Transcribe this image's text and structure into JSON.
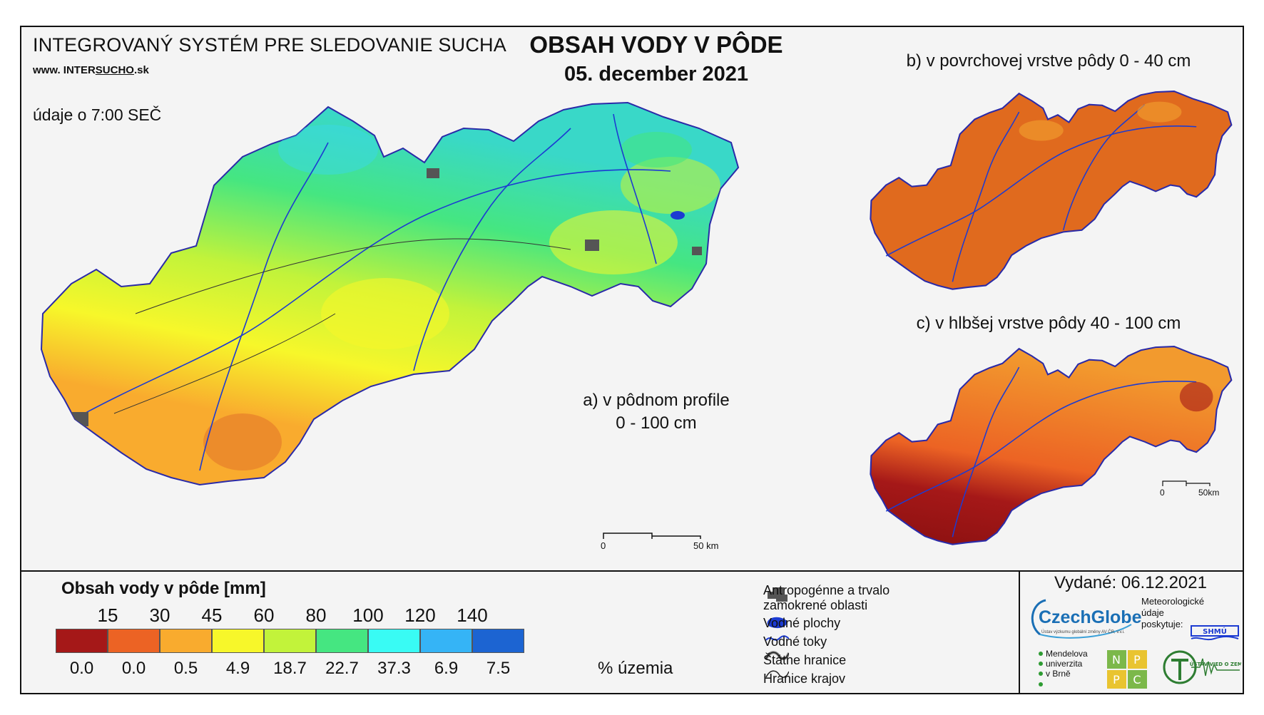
{
  "header": {
    "system_title": "INTEGROVANÝ SYSTÉM PRE SLEDOVANIE SUCHA",
    "url_prefix": "www. INTER",
    "url_brand": "SUCHO",
    "url_suffix": ".sk",
    "data_time": "údaje o 7:00 SEČ",
    "main_title": "OBSAH VODY V PÔDE",
    "date": "05. december 2021"
  },
  "maps": {
    "a_label_line1": "a) v pôdnom profile",
    "a_label_line2": "0 - 100 cm",
    "b_label": "b) v povrchovej vrstve pôdy 0 - 40 cm",
    "c_label": "c) v hlbšej vrstve pôdy 40 - 100 cm",
    "scale_zero": "0",
    "scale_end": "50 km",
    "scale_small_zero": "0",
    "scale_small_end": "50km"
  },
  "legend": {
    "title": "Obsah vody v pôde  [mm]",
    "thresholds": [
      "15",
      "30",
      "45",
      "60",
      "80",
      "100",
      "120",
      "140"
    ],
    "colors": [
      "#a51818",
      "#ec6324",
      "#f9ab2e",
      "#f7f72a",
      "#c2f33a",
      "#45e681",
      "#39fbf4",
      "#35b4f6",
      "#1c64d2"
    ],
    "percent_values": [
      "0.0",
      "0.0",
      "0.5",
      "4.9",
      "18.7",
      "22.7",
      "37.3",
      "6.9",
      "7.5"
    ],
    "percent_label": "% územia"
  },
  "symbols": {
    "anthropogenic_line1": "Antropogénne a trvalo",
    "anthropogenic_line2": "zamokrené oblasti",
    "water_bodies": "Vodné plochy",
    "streams": "Vodné toky",
    "state_border": "Štátne hranice",
    "region_border": "Hranice krajov"
  },
  "footer": {
    "issued": "Vydané: 06.12.2021",
    "czechglobe": "CzechGlobe",
    "czechglobe_sub": "Ústav výzkumu globální změny AV ČR, v.v.i.",
    "meteo_line1": "Meteorologické",
    "meteo_line2": "údaje",
    "meteo_line3": "poskytuje:",
    "shmu": "SHMÚ",
    "mendel_line1": "Mendelova",
    "mendel_line2": "univerzita",
    "mendel_line3": "v Brně",
    "npp": [
      "N",
      "P",
      "P",
      "C"
    ],
    "uvz": "ÚSTAV VIED O ZEMI"
  }
}
